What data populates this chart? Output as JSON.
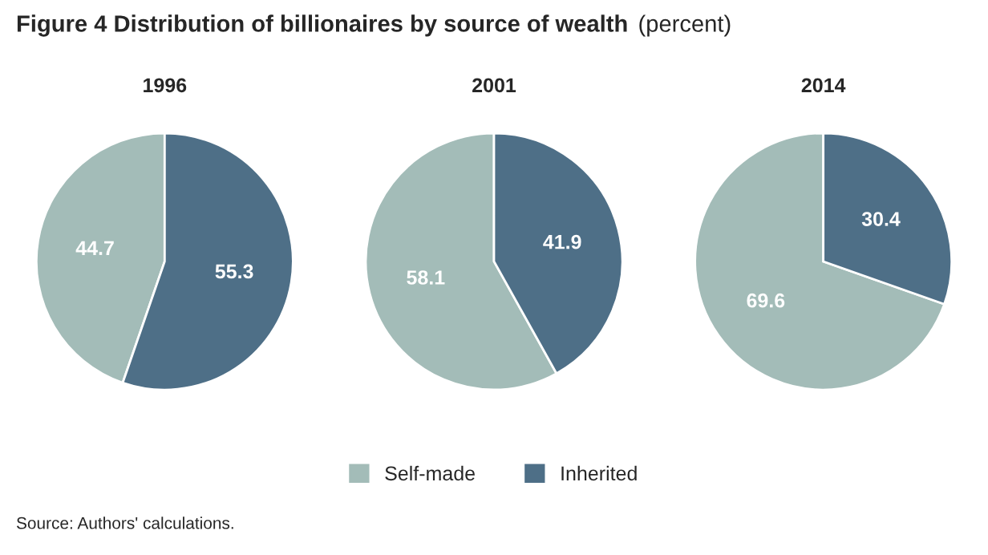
{
  "chart_data": [
    {
      "type": "pie",
      "title": "1996",
      "categories": [
        "Self-made",
        "Inherited"
      ],
      "values": [
        44.7,
        55.3
      ],
      "colors": [
        "#a3bcb8",
        "#4e6f87"
      ],
      "data_labels": true,
      "legend": "bottom",
      "annotations": [
        "Figure 4 Distribution of billionaires by source of wealth",
        "(percent)",
        "Source: Authors' calculations."
      ]
    },
    {
      "type": "pie",
      "title": "2001",
      "categories": [
        null,
        null
      ],
      "values": [
        58.1,
        41.9
      ],
      "colors": [
        "#a3bcb8",
        "#4e6f87"
      ],
      "data_labels": true
    },
    {
      "type": "pie",
      "title": "2014",
      "categories": [
        null,
        null
      ],
      "values": [
        69.6,
        30.4
      ],
      "colors": [
        "#a3bcb8",
        "#4e6f87"
      ],
      "data_labels": true
    }
  ]
}
